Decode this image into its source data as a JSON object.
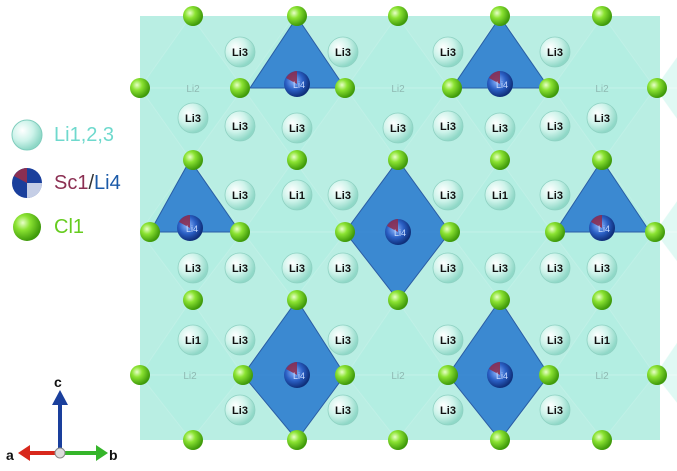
{
  "legend": {
    "items": [
      {
        "label": "Li1,2,3",
        "color": "#6fd9cd"
      },
      {
        "label_a": "Sc1",
        "sep": "/",
        "label_b": "Li4",
        "color_a": "#8b2f52",
        "color_b": "#1b5aa8"
      },
      {
        "label": "Cl1",
        "color": "#66cc1f"
      }
    ]
  },
  "axes": {
    "a": "a",
    "b": "b",
    "c": "c"
  },
  "atom_labels": {
    "li1": "Li1",
    "li2": "Li2",
    "li3": "Li3",
    "li4": "Li4"
  },
  "colors": {
    "li_polyhedra": "#7fe0cc",
    "sc_polyhedra": "#2f7fd0",
    "cl_atom": "#6fd11e",
    "li_atom": "#c9f2e9",
    "sc_atom_center": "#1a3f9c",
    "axis_a": "#d8281c",
    "axis_b": "#35b52a",
    "axis_c": "#1a3f9c"
  }
}
